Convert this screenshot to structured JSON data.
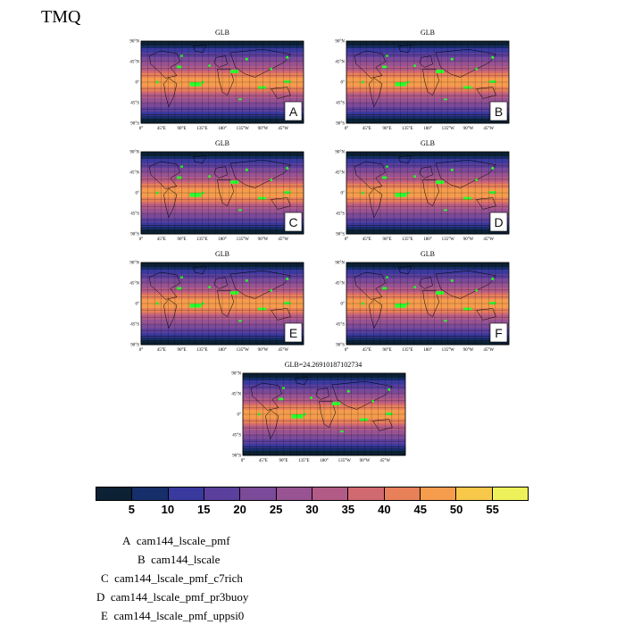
{
  "figure_title": "TMQ",
  "chart_data": {
    "type": "heatmap",
    "variable": "TMQ",
    "panels": [
      {
        "id": "A",
        "title": "GLB",
        "letter": "A"
      },
      {
        "id": "B",
        "title": "GLB",
        "letter": "B"
      },
      {
        "id": "C",
        "title": "GLB",
        "letter": "C"
      },
      {
        "id": "D",
        "title": "GLB",
        "letter": "D"
      },
      {
        "id": "E",
        "title": "GLB",
        "letter": "E"
      },
      {
        "id": "F",
        "title": "GLB",
        "letter": "F"
      },
      {
        "id": "G",
        "title": "GLB=24.26910187102734",
        "letter": ""
      }
    ],
    "x_ticks": [
      "0°",
      "45°E",
      "90°E",
      "135°E",
      "180°",
      "135°W",
      "90°W",
      "45°W"
    ],
    "y_ticks": [
      "90°N",
      "45°N",
      "0°",
      "45°S",
      "90°S"
    ],
    "colorbar": {
      "levels": [
        5,
        10,
        15,
        20,
        25,
        30,
        35,
        40,
        45,
        50,
        55
      ],
      "colors": [
        "#0c2134",
        "#162f6a",
        "#3a3a9e",
        "#5b3f9c",
        "#7b4a98",
        "#985393",
        "#b25b86",
        "#d16a70",
        "#e8805a",
        "#f59c4d",
        "#f7c84a",
        "#eef25a"
      ]
    },
    "marker_color": "#2bff2b"
  },
  "legend": [
    {
      "letter": "A",
      "name": "cam144_lscale_pmf"
    },
    {
      "letter": "B",
      "name": "cam144_lscale"
    },
    {
      "letter": "C",
      "name": "cam144_lscale_pmf_c7rich"
    },
    {
      "letter": "D",
      "name": "cam144_lscale_pmf_pr3buoy"
    },
    {
      "letter": "E",
      "name": "cam144_lscale_pmf_uppsi0"
    }
  ]
}
